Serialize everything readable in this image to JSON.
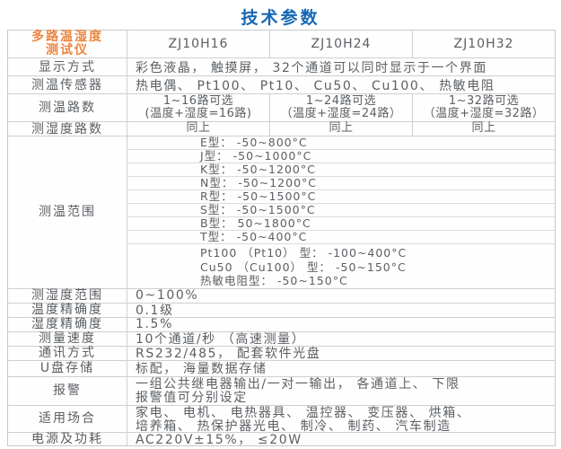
{
  "title": "技术参数",
  "colors": {
    "title_blue": "#1568b4",
    "header_orange": "#ee8540",
    "body_text": "#5b5f63",
    "border": "#cfcfcf"
  },
  "table": {
    "header": {
      "product_line1": "多路温湿度",
      "product_line2": "测试仪",
      "models": [
        "ZJ10H16",
        "ZJ10H24",
        "ZJ10H32"
      ]
    },
    "display_row": {
      "label": "显示方式",
      "value": "彩色液晶， 触摸屏， 32个通道可以同时显示于一个界面"
    },
    "sensor_row": {
      "label": "测温传感器",
      "value": "热电偶、 Pt100、 Pt10、 Cu50、 Cu100、 热敏电阻"
    },
    "temp_channels_row": {
      "label": "测温路数",
      "cells": [
        {
          "line1": "1~16路可选",
          "line2": "(温度+湿度=16路)"
        },
        {
          "line1": "1~24路可选",
          "line2": "（温度+湿度=24路）"
        },
        {
          "line1": "1~32路可选",
          "line2": "（温度+湿度=32路）"
        }
      ]
    },
    "humidity_channels_row": {
      "label": "测湿度路数",
      "cells": [
        "同上",
        "同上",
        "同上"
      ]
    },
    "temp_range_row": {
      "label": "测温范围",
      "sub_rows": [
        "E型： -50~800°C",
        "J型： -50~1000°C",
        "K型： -50~1200°C",
        "N型： -50~1200°C",
        "R型： -50~1500°C",
        "S型： -50~1500°C",
        "B型：  50~1800°C",
        "T型： -50~400°C"
      ],
      "last_lines": [
        "Pt100 （Pt10） 型： -100~400°C",
        "Cu50 （Cu100） 型： -50~150°C",
        "热敏电阻型： -50~150°C"
      ]
    },
    "humidity_range_row": {
      "label": "测湿度范围",
      "value": "0~100%"
    },
    "temp_accuracy_row": {
      "label": "温度精确度",
      "value": "0.1级"
    },
    "humidity_accuracy_row": {
      "label": "湿度精确度",
      "value": "1.5%"
    },
    "speed_row": {
      "label": "测量速度",
      "value": "10个通道/秒 （高速测量）"
    },
    "comm_row": {
      "label": "通讯方式",
      "value": "RS232/485， 配套软件光盘"
    },
    "usb_row": {
      "label": "U盘存储",
      "value": "标配， 海量数据存储"
    },
    "alarm_row": {
      "label": "报警",
      "line1": "一组公共继电器输出/一对一输出， 各通道上、 下限",
      "line2": "报警值可分别设定"
    },
    "applications_row": {
      "label": "适用场合",
      "line1": "家电、 电机、 电热器具、 温控器、 变压器、 烘箱、",
      "line2": "培养箱、 热保护器光电、 制冷、 制药、 汽车制造"
    },
    "power_row": {
      "label": "电源及功耗",
      "value": "AC220V±15%， ≤20W"
    }
  }
}
